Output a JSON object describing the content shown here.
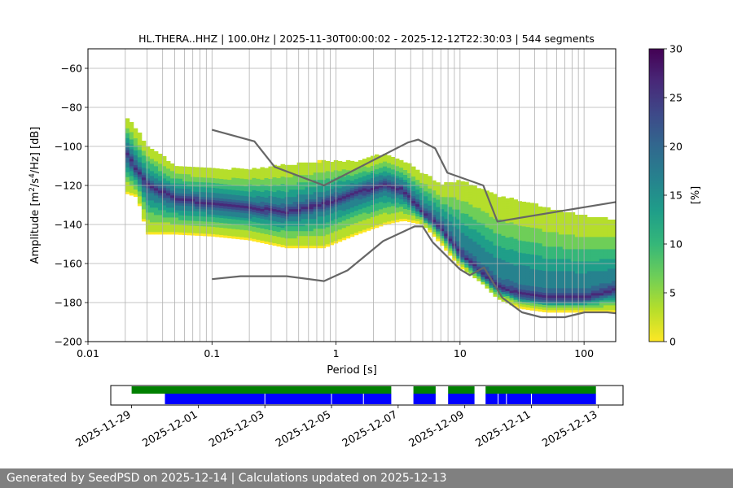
{
  "title": "HL.THERA..HHZ | 100.0Hz | 2025-11-30T00:00:02 - 2025-12-12T22:30:03 | 544 segments",
  "footer": "Generated by SeedPSD on 2025-12-14 | Calculations updated on 2025-12-13",
  "colors": {
    "noise_model": "#666666",
    "grid": "#b0b0b0",
    "avail_green": "#008000",
    "avail_blue": "#0000ff",
    "colormap": [
      "#fde725",
      "#b5de2b",
      "#6ece58",
      "#35b779",
      "#1f9e89",
      "#26828e",
      "#31688e",
      "#3e4989",
      "#482878",
      "#440154"
    ]
  },
  "chart_data": [
    {
      "type": "heatmap",
      "title": "HL.THERA..HHZ | 100.0Hz | 2025-11-30T00:00:02 - 2025-12-12T22:30:03 | 544 segments",
      "xlabel": "Period [s]",
      "ylabel": "Amplitude [m²/s⁴/Hz] [dB]",
      "xscale": "log",
      "xlim": [
        0.01,
        180
      ],
      "ylim": [
        -200,
        -50
      ],
      "xticks": [
        0.01,
        0.1,
        1,
        10,
        100
      ],
      "xtick_labels": [
        "0.01",
        "0.1",
        "1",
        "10",
        "100"
      ],
      "yticks": [
        -200,
        -180,
        -160,
        -140,
        -120,
        -100,
        -80,
        -60
      ],
      "ytick_labels": [
        "−200",
        "−180",
        "−160",
        "−140",
        "−120",
        "−100",
        "−80",
        "−60"
      ],
      "grid": true,
      "colorbar": {
        "label": "[%]",
        "range": [
          0,
          30
        ],
        "ticks": [
          0,
          5,
          10,
          15,
          20,
          25,
          30
        ],
        "tick_labels": [
          "0",
          "5",
          "10",
          "15",
          "20",
          "25",
          "30"
        ]
      },
      "psd_distribution": [
        {
          "period": 0.02,
          "mode": -103,
          "lower": -124,
          "upper": -85
        },
        {
          "period": 0.025,
          "mode": -113,
          "lower": -126,
          "upper": -92
        },
        {
          "period": 0.03,
          "mode": -120,
          "lower": -145,
          "upper": -100
        },
        {
          "period": 0.05,
          "mode": -127,
          "lower": -145,
          "upper": -110
        },
        {
          "period": 0.1,
          "mode": -130,
          "lower": -146,
          "upper": -112
        },
        {
          "period": 0.2,
          "mode": -132,
          "lower": -148,
          "upper": -112
        },
        {
          "period": 0.4,
          "mode": -134,
          "lower": -152,
          "upper": -110
        },
        {
          "period": 0.8,
          "mode": -130,
          "lower": -152,
          "upper": -108
        },
        {
          "period": 1.5,
          "mode": -124,
          "lower": -145,
          "upper": -108
        },
        {
          "period": 2.5,
          "mode": -120,
          "lower": -140,
          "upper": -104
        },
        {
          "period": 3.5,
          "mode": -123,
          "lower": -138,
          "upper": -108
        },
        {
          "period": 5,
          "mode": -134,
          "lower": -140,
          "upper": -114
        },
        {
          "period": 7,
          "mode": -142,
          "lower": -150,
          "upper": -120
        },
        {
          "period": 10,
          "mode": -155,
          "lower": -162,
          "upper": -118
        },
        {
          "period": 15,
          "mode": -165,
          "lower": -170,
          "upper": -122
        },
        {
          "period": 20,
          "mode": -172,
          "lower": -178,
          "upper": -126
        },
        {
          "period": 30,
          "mode": -176,
          "lower": -183,
          "upper": -128
        },
        {
          "period": 50,
          "mode": -178,
          "lower": -185,
          "upper": -132
        },
        {
          "period": 100,
          "mode": -178,
          "lower": -185,
          "upper": -136
        },
        {
          "period": 175,
          "mode": -174,
          "lower": -185,
          "upper": -138
        }
      ],
      "series": [
        {
          "name": "",
          "x": [
            0.1,
            0.22,
            0.32,
            0.8,
            3.8,
            4.6,
            6.3,
            7.9,
            15.4,
            20.0,
            180
          ],
          "values": [
            -91.5,
            -97.4,
            -110.5,
            -120.0,
            -98.0,
            -96.5,
            -101.0,
            -113.5,
            -120.0,
            -138.5,
            -128.5
          ]
        },
        {
          "name": "",
          "x": [
            0.1,
            0.17,
            0.4,
            0.8,
            1.24,
            2.4,
            4.3,
            5.0,
            6.0,
            10.0,
            12.0,
            15.6,
            21.9,
            31.6,
            45.0,
            70.0,
            101,
            154,
            180
          ],
          "values": [
            -168.0,
            -166.5,
            -166.5,
            -169.0,
            -163.5,
            -148.5,
            -141.0,
            -141.0,
            -149.0,
            -163.0,
            -166.0,
            -162.0,
            -177.5,
            -185.0,
            -187.5,
            -187.5,
            -185.0,
            -185.0,
            -185.5
          ]
        }
      ]
    },
    {
      "type": "timeline",
      "xlim": [
        "2025-11-28T09:00",
        "2025-12-13T18:00"
      ],
      "xticks": [
        "2025-11-29",
        "2025-12-01",
        "2025-12-03",
        "2025-12-05",
        "2025-12-07",
        "2025-12-09",
        "2025-12-11",
        "2025-12-13"
      ],
      "green_intervals": [
        [
          "2025-11-29T00:00",
          "2025-12-06T19:00"
        ],
        [
          "2025-12-07T11:00",
          "2025-12-08T03:00"
        ],
        [
          "2025-12-08T12:00",
          "2025-12-09T07:00"
        ],
        [
          "2025-12-09T15:00",
          "2025-12-12T22:30"
        ]
      ],
      "blue_intervals": [
        [
          "2025-11-30T00:00",
          "2025-12-06T19:00"
        ],
        [
          "2025-12-07T11:00",
          "2025-12-08T03:00"
        ],
        [
          "2025-12-08T12:00",
          "2025-12-09T07:00"
        ],
        [
          "2025-12-09T15:00",
          "2025-12-12T22:30"
        ]
      ],
      "blue_breaks": [
        "2025-12-03T00:00",
        "2025-12-05T00:00",
        "2025-12-05T23:00",
        "2025-12-10T00:00",
        "2025-12-10T06:00",
        "2025-12-11T00:00"
      ]
    }
  ]
}
